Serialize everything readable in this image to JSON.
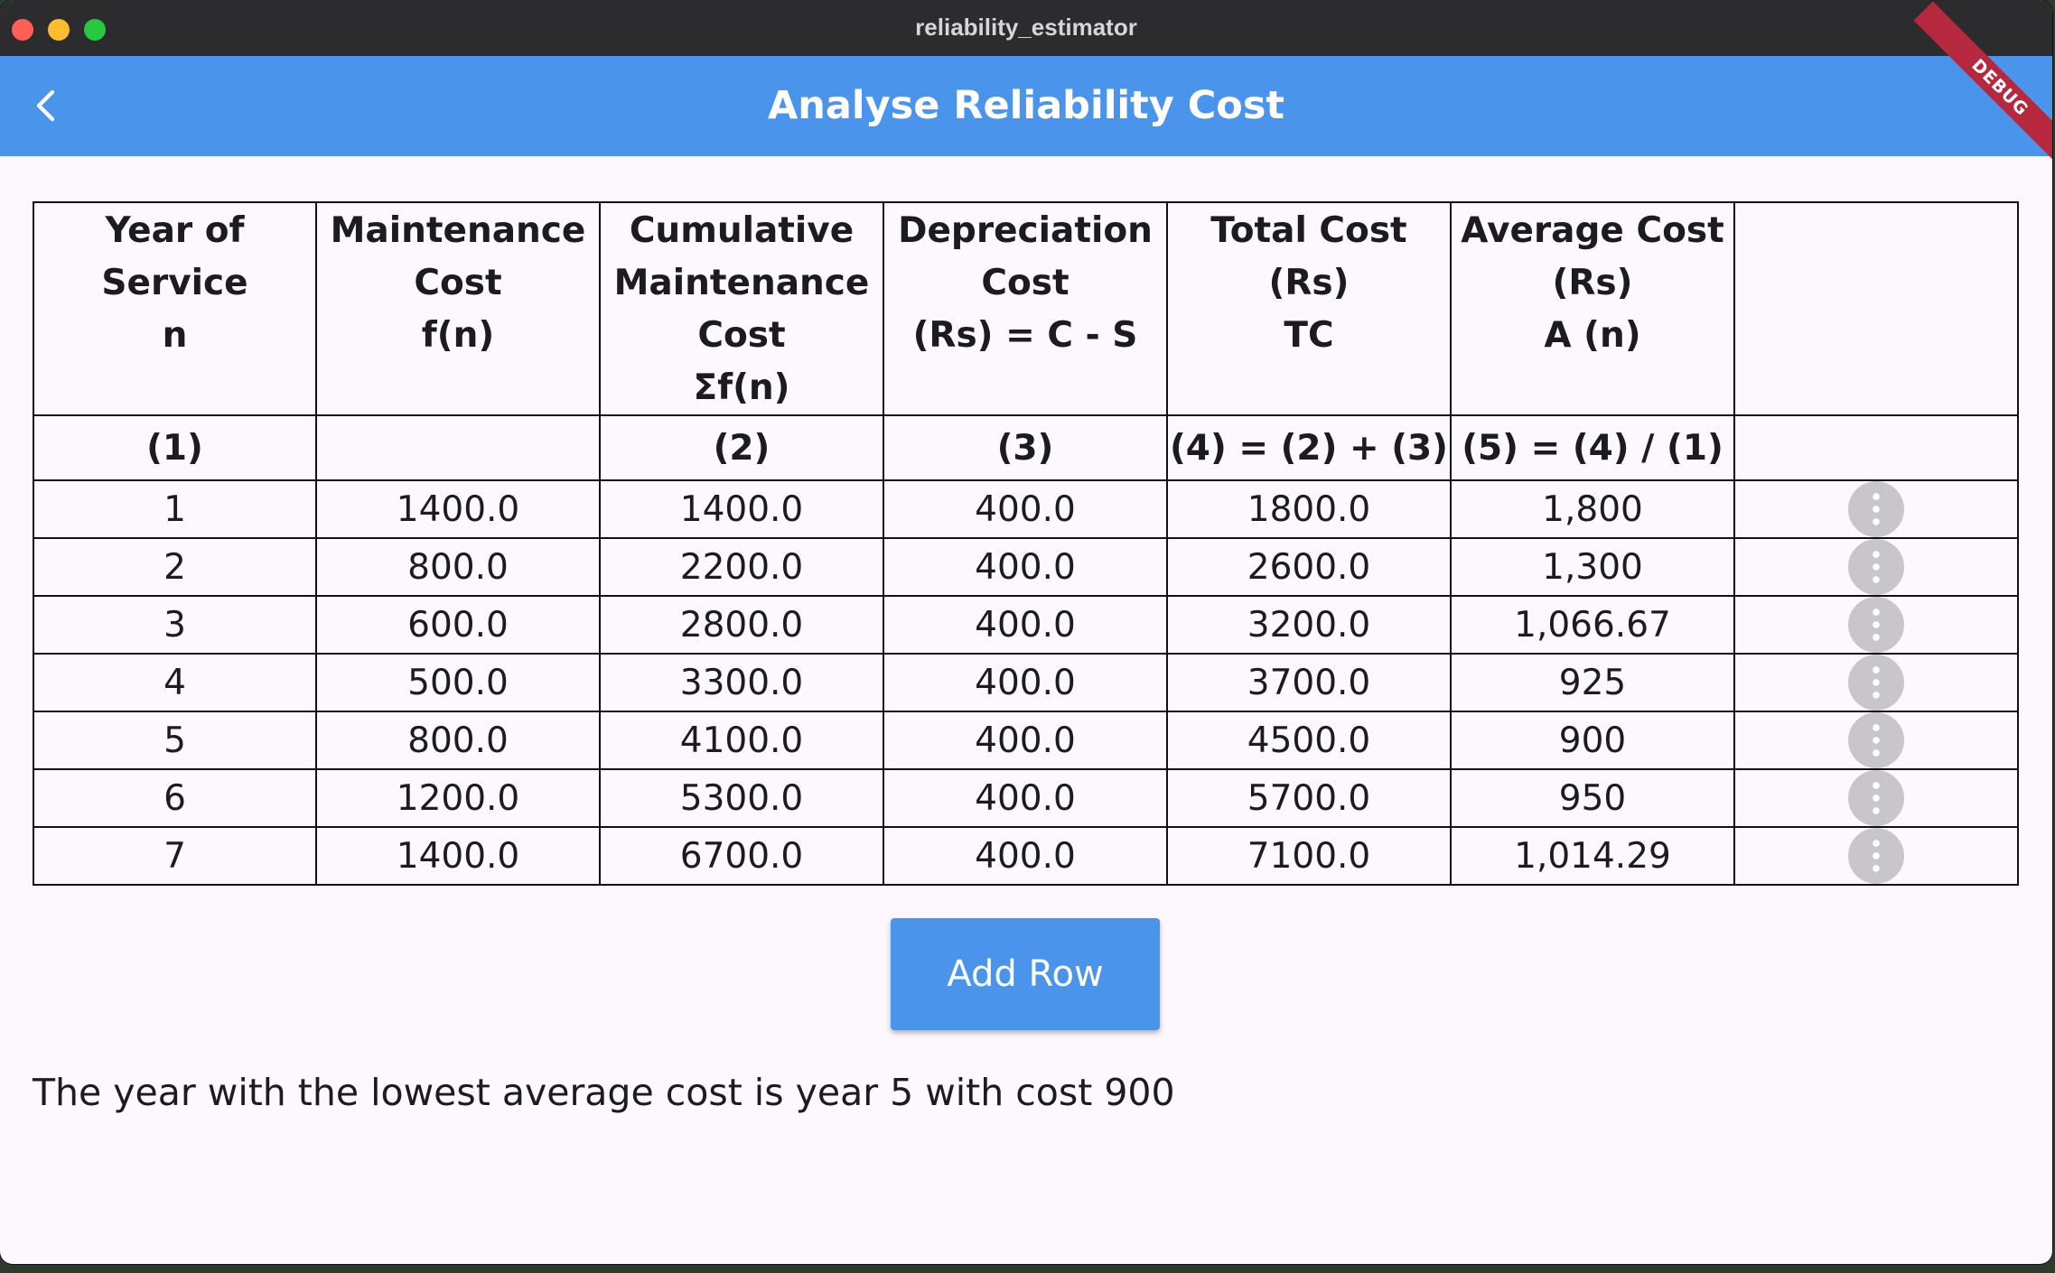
{
  "window": {
    "title": "reliability_estimator"
  },
  "appbar": {
    "title": "Analyse Reliability Cost",
    "debug_label": "DEBUG"
  },
  "colors": {
    "appbar": "#4a95eb",
    "button": "#4a95eb",
    "background": "#fcf8fe",
    "more_button": "#c8c6cb"
  },
  "icons": {
    "back": "chevron-left-icon",
    "row_menu": "more-vertical-icon"
  },
  "table": {
    "headers": [
      [
        "Year of Service",
        "n"
      ],
      [
        "Maintenance",
        "Cost",
        "f(n)"
      ],
      [
        "Cumulative",
        "Maintenance",
        "Cost",
        "Σf(n)"
      ],
      [
        "Depreciation",
        "Cost",
        "(Rs) = C - S"
      ],
      [
        "Total Cost (Rs)",
        "TC"
      ],
      [
        "Average Cost",
        "(Rs)",
        "A (n)"
      ],
      []
    ],
    "labels": [
      "(1)",
      "",
      "(2)",
      "(3)",
      "(4) = (2) + (3)",
      "(5) = (4) / (1)",
      ""
    ],
    "rows": [
      [
        "1",
        "1400.0",
        "1400.0",
        "400.0",
        "1800.0",
        "1,800"
      ],
      [
        "2",
        "800.0",
        "2200.0",
        "400.0",
        "2600.0",
        "1,300"
      ],
      [
        "3",
        "600.0",
        "2800.0",
        "400.0",
        "3200.0",
        "1,066.67"
      ],
      [
        "4",
        "500.0",
        "3300.0",
        "400.0",
        "3700.0",
        "925"
      ],
      [
        "5",
        "800.0",
        "4100.0",
        "400.0",
        "4500.0",
        "900"
      ],
      [
        "6",
        "1200.0",
        "5300.0",
        "400.0",
        "5700.0",
        "950"
      ],
      [
        "7",
        "1400.0",
        "6700.0",
        "400.0",
        "7100.0",
        "1,014.29"
      ]
    ]
  },
  "actions": {
    "add_row_label": "Add Row"
  },
  "result": {
    "text": "The year with the lowest average cost is year 5 with cost 900"
  }
}
